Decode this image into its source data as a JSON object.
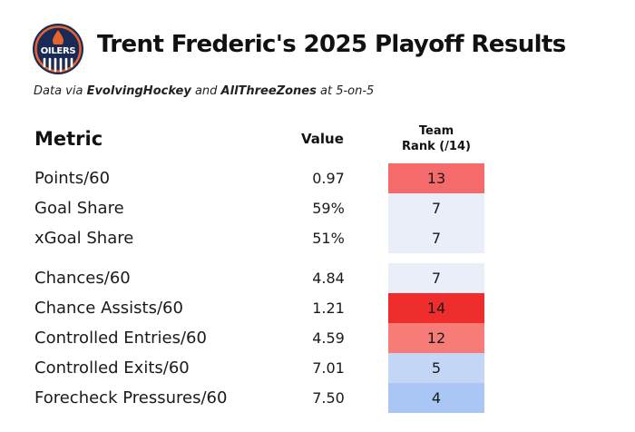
{
  "header": {
    "title": "Trent Frederic's 2025 Playoff Results",
    "subtitle": {
      "part1": "Data via ",
      "source1": "EvolvingHockey",
      "part2": " and ",
      "source2": "AllThreeZones",
      "part3": " at 5-on-5"
    },
    "logo": {
      "name": "oilers-logo",
      "text": "OILERS",
      "colors": {
        "navy": "#1a2a56",
        "orange": "#e8632b",
        "white": "#ffffff"
      }
    }
  },
  "table": {
    "columns": {
      "metric": "Metric",
      "value": "Value",
      "rank_line1": "Team",
      "rank_line2": "Rank (/14)"
    },
    "rows": [
      {
        "metric": "Points/60",
        "value": "0.97",
        "rank": "13",
        "color": "#f56b6b",
        "group": 1
      },
      {
        "metric": "Goal Share",
        "value": "59%",
        "rank": "7",
        "color": "#e9eef8",
        "group": 1
      },
      {
        "metric": "xGoal Share",
        "value": "51%",
        "rank": "7",
        "color": "#e9eef8",
        "group": 1
      },
      {
        "metric": "Chances/60",
        "value": "4.84",
        "rank": "7",
        "color": "#e9eef8",
        "group": 2
      },
      {
        "metric": "Chance Assists/60",
        "value": "1.21",
        "rank": "14",
        "color": "#f02d2d",
        "group": 2
      },
      {
        "metric": "Controlled Entries/60",
        "value": "4.59",
        "rank": "12",
        "color": "#f77c78",
        "group": 2
      },
      {
        "metric": "Controlled Exits/60",
        "value": "7.01",
        "rank": "5",
        "color": "#c3d6f6",
        "group": 2
      },
      {
        "metric": "Forecheck Pressures/60",
        "value": "7.50",
        "rank": "4",
        "color": "#a9c6f5",
        "group": 2
      }
    ]
  }
}
